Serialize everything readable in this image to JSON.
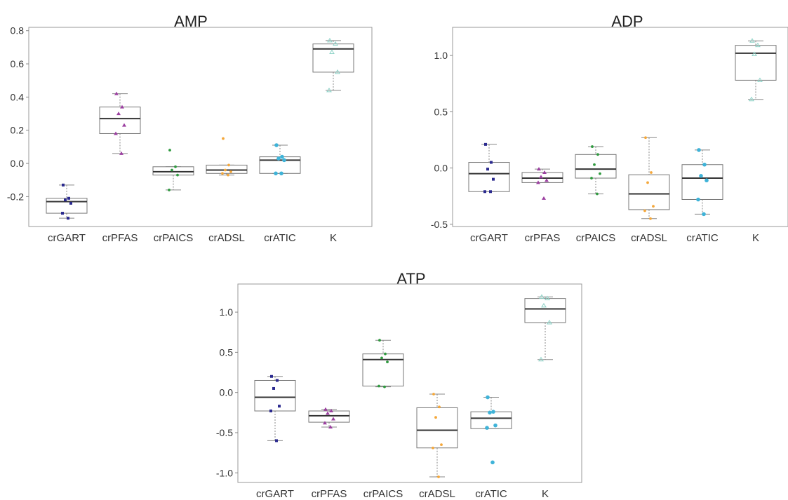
{
  "colors": {
    "crGART": "#2b2a8f",
    "crPFAS": "#9b3fa0",
    "crPAICS": "#2f9a3f",
    "crADSL": "#f4a73a",
    "crATIC": "#3fb3d8",
    "K": "#8fd3c8"
  },
  "chart_data": [
    {
      "type": "box",
      "title": "AMP",
      "categories": [
        "crGART",
        "crPFAS",
        "crPAICS",
        "crADSL",
        "crATIC",
        "K"
      ],
      "ylim": [
        -0.38,
        0.82
      ],
      "yticks": [
        -0.2,
        0.0,
        0.2,
        0.4,
        0.6,
        0.8
      ],
      "ytick_labels": [
        "-0.2",
        "0.0",
        "0.2",
        "0.4",
        "0.6",
        "0.8"
      ],
      "boxes": [
        {
          "q1": -0.3,
          "median": -0.23,
          "q3": -0.21,
          "whisker_low": -0.33,
          "whisker_high": -0.13,
          "points": [
            -0.13,
            -0.21,
            -0.22,
            -0.24,
            -0.3,
            -0.33
          ]
        },
        {
          "q1": 0.18,
          "median": 0.27,
          "q3": 0.34,
          "whisker_low": 0.06,
          "whisker_high": 0.42,
          "points": [
            0.42,
            0.34,
            0.3,
            0.23,
            0.18,
            0.06
          ]
        },
        {
          "q1": -0.07,
          "median": -0.05,
          "q3": -0.02,
          "whisker_low": -0.16,
          "whisker_high": -0.02,
          "points": [
            0.08,
            -0.02,
            -0.04,
            -0.07,
            -0.16
          ]
        },
        {
          "q1": -0.06,
          "median": -0.04,
          "q3": -0.01,
          "whisker_low": -0.07,
          "whisker_high": -0.01,
          "points": [
            0.15,
            -0.01,
            -0.04,
            -0.05,
            -0.06,
            -0.07
          ]
        },
        {
          "q1": -0.06,
          "median": 0.02,
          "q3": 0.04,
          "whisker_low": -0.06,
          "whisker_high": 0.11,
          "points": [
            0.11,
            0.04,
            0.03,
            0.02,
            -0.06,
            -0.06
          ]
        },
        {
          "q1": 0.55,
          "median": 0.69,
          "q3": 0.72,
          "whisker_low": 0.44,
          "whisker_high": 0.74,
          "points": [
            0.74,
            0.72,
            0.67,
            0.55,
            0.44
          ]
        }
      ]
    },
    {
      "type": "box",
      "title": "ADP",
      "categories": [
        "crGART",
        "crPFAS",
        "crPAICS",
        "crADSL",
        "crATIC",
        "K"
      ],
      "ylim": [
        -0.52,
        1.25
      ],
      "yticks": [
        -0.5,
        0.0,
        0.5,
        1.0
      ],
      "ytick_labels": [
        "-0.5",
        "0.0",
        "0.5",
        "1.0"
      ],
      "boxes": [
        {
          "q1": -0.21,
          "median": -0.05,
          "q3": 0.05,
          "whisker_low": -0.21,
          "whisker_high": 0.21,
          "points": [
            0.21,
            0.05,
            -0.01,
            -0.1,
            -0.21,
            -0.21
          ]
        },
        {
          "q1": -0.13,
          "median": -0.09,
          "q3": -0.04,
          "whisker_low": -0.13,
          "whisker_high": -0.01,
          "points": [
            -0.01,
            -0.04,
            -0.08,
            -0.11,
            -0.13,
            -0.27
          ]
        },
        {
          "q1": -0.09,
          "median": -0.01,
          "q3": 0.12,
          "whisker_low": -0.23,
          "whisker_high": 0.19,
          "points": [
            0.19,
            0.12,
            0.03,
            -0.05,
            -0.09,
            -0.23
          ]
        },
        {
          "q1": -0.37,
          "median": -0.23,
          "q3": -0.06,
          "whisker_low": -0.45,
          "whisker_high": 0.27,
          "points": [
            0.27,
            -0.04,
            -0.13,
            -0.34,
            -0.38,
            -0.45
          ]
        },
        {
          "q1": -0.28,
          "median": -0.09,
          "q3": 0.03,
          "whisker_low": -0.41,
          "whisker_high": 0.16,
          "points": [
            0.16,
            0.03,
            -0.07,
            -0.11,
            -0.28,
            -0.41
          ]
        },
        {
          "q1": 0.78,
          "median": 1.02,
          "q3": 1.09,
          "whisker_low": 0.61,
          "whisker_high": 1.13,
          "points": [
            1.13,
            1.09,
            1.01,
            0.78,
            0.61
          ]
        }
      ]
    },
    {
      "type": "box",
      "title": "ATP",
      "categories": [
        "crGART",
        "crPFAS",
        "crPAICS",
        "crADSL",
        "crATIC",
        "K"
      ],
      "ylim": [
        -1.12,
        1.35
      ],
      "yticks": [
        -1.0,
        -0.5,
        0.0,
        0.5,
        1.0
      ],
      "ytick_labels": [
        "-1.0",
        "-0.5",
        "0.0",
        "0.5",
        "1.0"
      ],
      "boxes": [
        {
          "q1": -0.23,
          "median": -0.06,
          "q3": 0.15,
          "whisker_low": -0.6,
          "whisker_high": 0.2,
          "points": [
            0.2,
            0.15,
            0.05,
            -0.17,
            -0.23,
            -0.6
          ]
        },
        {
          "q1": -0.37,
          "median": -0.29,
          "q3": -0.23,
          "whisker_low": -0.43,
          "whisker_high": -0.21,
          "points": [
            -0.21,
            -0.23,
            -0.26,
            -0.33,
            -0.38,
            -0.43
          ]
        },
        {
          "q1": 0.08,
          "median": 0.41,
          "q3": 0.48,
          "whisker_low": 0.07,
          "whisker_high": 0.65,
          "points": [
            0.65,
            0.48,
            0.43,
            0.38,
            0.08,
            0.07
          ]
        },
        {
          "q1": -0.69,
          "median": -0.47,
          "q3": -0.19,
          "whisker_low": -1.05,
          "whisker_high": -0.02,
          "points": [
            -0.02,
            -0.18,
            -0.31,
            -0.65,
            -0.69,
            -1.05
          ]
        },
        {
          "q1": -0.45,
          "median": -0.32,
          "q3": -0.24,
          "whisker_low": -0.45,
          "whisker_high": -0.06,
          "points": [
            -0.06,
            -0.24,
            -0.25,
            -0.41,
            -0.44,
            -0.87
          ]
        },
        {
          "q1": 0.87,
          "median": 1.04,
          "q3": 1.17,
          "whisker_low": 0.41,
          "whisker_high": 1.19,
          "points": [
            1.19,
            1.17,
            1.08,
            0.87,
            0.41
          ]
        }
      ]
    }
  ]
}
